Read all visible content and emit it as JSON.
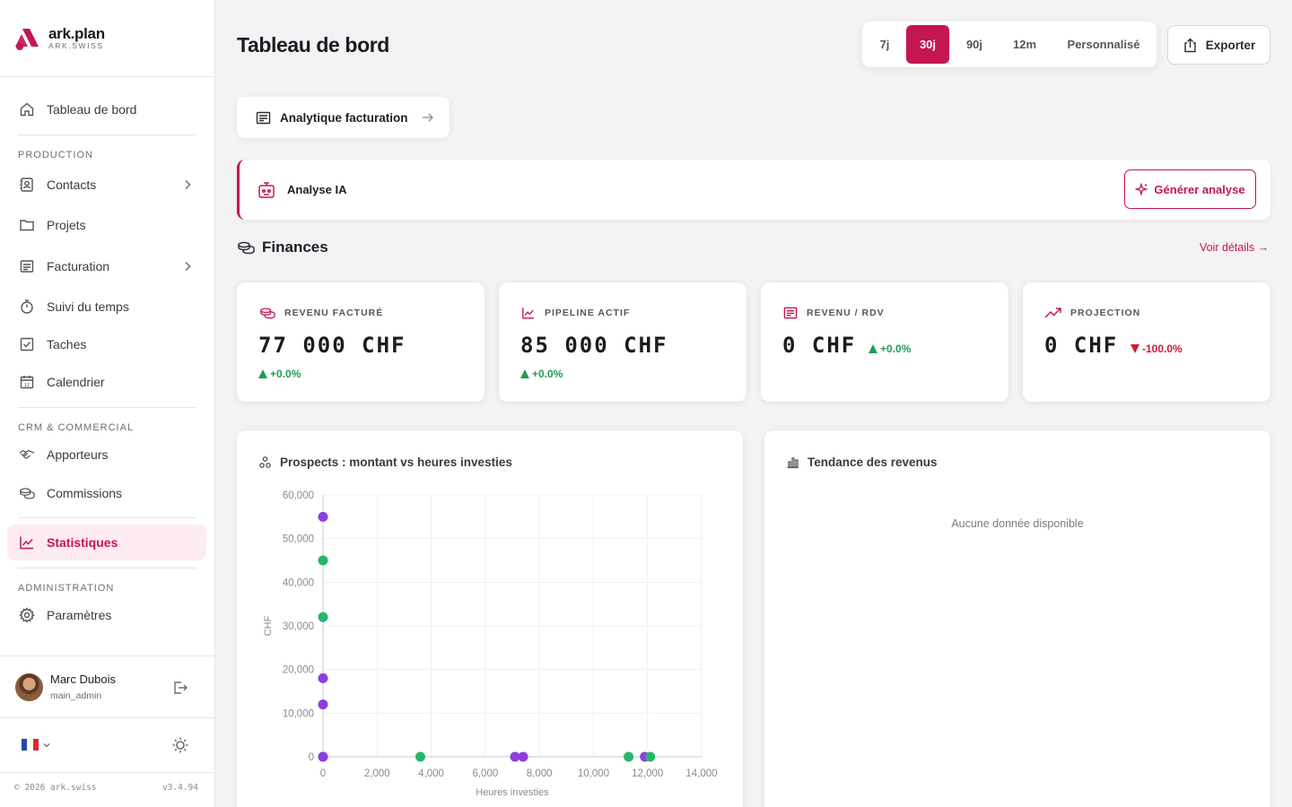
{
  "brand": {
    "name": "ark.plan",
    "sub": "ARK.SWISS"
  },
  "colors": {
    "accent": "#c4164f",
    "positive": "#1f9d55",
    "negative": "#d0192e",
    "series_purple": "#8b3ee0",
    "series_green": "#27b56e"
  },
  "sidebar": {
    "dashboard": {
      "label": "Tableau de bord",
      "icon": "home-icon"
    },
    "sections": {
      "production": "PRODUCTION",
      "crm": "CRM & COMMERCIAL",
      "admin": "ADMINISTRATION"
    },
    "items": {
      "contacts": "Contacts",
      "projets": "Projets",
      "facturation": "Facturation",
      "suivi": "Suivi du temps",
      "taches": "Taches",
      "calendrier": "Calendrier",
      "apporteurs": "Apporteurs",
      "commissions": "Commissions",
      "statistiques": "Statistiques",
      "parametres": "Paramètres"
    },
    "user": {
      "name": "Marc Dubois",
      "role": "main_admin"
    },
    "footer": {
      "copyright": "© 2026 ark.swiss",
      "version": "v3.4.94"
    }
  },
  "header": {
    "title": "Tableau de bord",
    "ranges": [
      "7j",
      "30j",
      "90j",
      "12m",
      "Personnalisé"
    ],
    "active_range": "30j",
    "export_label": "Exporter"
  },
  "billing_link": {
    "label": "Analytique facturation"
  },
  "ai": {
    "label": "Analyse IA",
    "button": "Générer analyse"
  },
  "finances": {
    "title": "Finances",
    "details_link": "Voir détails →",
    "kpis": [
      {
        "label": "REVENU FACTURÉ",
        "value": "77 000 CHF",
        "delta": "+0.0%",
        "direction": "up"
      },
      {
        "label": "PIPELINE ACTIF",
        "value": "85 000 CHF",
        "delta": "+0.0%",
        "direction": "up"
      },
      {
        "label": "REVENU / RDV",
        "value": "0 CHF",
        "delta": "+0.0%",
        "direction": "up"
      },
      {
        "label": "PROJECTION",
        "value": "0 CHF",
        "delta": "-100.0%",
        "direction": "down"
      }
    ]
  },
  "scatter": {
    "title": "Prospects : montant vs heures investies"
  },
  "trend": {
    "title": "Tendance des revenus",
    "empty": "Aucune donnée disponible"
  },
  "chart_data": {
    "type": "scatter",
    "xlabel": "Heures investies",
    "ylabel": "CHF",
    "xlim": [
      0,
      14000
    ],
    "ylim": [
      0,
      60000
    ],
    "xticks": [
      "0",
      "2,000",
      "4,000",
      "6,000",
      "8,000",
      "10,000",
      "12,000",
      "14,000"
    ],
    "yticks": [
      "0",
      "10,000",
      "20,000",
      "30,000",
      "40,000",
      "50,000",
      "60,000"
    ],
    "grid": true,
    "points": [
      {
        "x": 0,
        "y": 55000,
        "color": "#8b3ee0"
      },
      {
        "x": 0,
        "y": 45000,
        "color": "#27b56e"
      },
      {
        "x": 0,
        "y": 32000,
        "color": "#27b56e"
      },
      {
        "x": 0,
        "y": 18000,
        "color": "#8b3ee0"
      },
      {
        "x": 0,
        "y": 12000,
        "color": "#8b3ee0"
      },
      {
        "x": 0,
        "y": 0,
        "color": "#27b56e"
      },
      {
        "x": 0,
        "y": 0,
        "color": "#8b3ee0"
      },
      {
        "x": 3600,
        "y": 0,
        "color": "#27b56e"
      },
      {
        "x": 7100,
        "y": 0,
        "color": "#8b3ee0"
      },
      {
        "x": 7400,
        "y": 0,
        "color": "#8b3ee0"
      },
      {
        "x": 11300,
        "y": 0,
        "color": "#27b56e"
      },
      {
        "x": 11900,
        "y": 0,
        "color": "#8b3ee0"
      },
      {
        "x": 12100,
        "y": 0,
        "color": "#27b56e"
      }
    ]
  }
}
